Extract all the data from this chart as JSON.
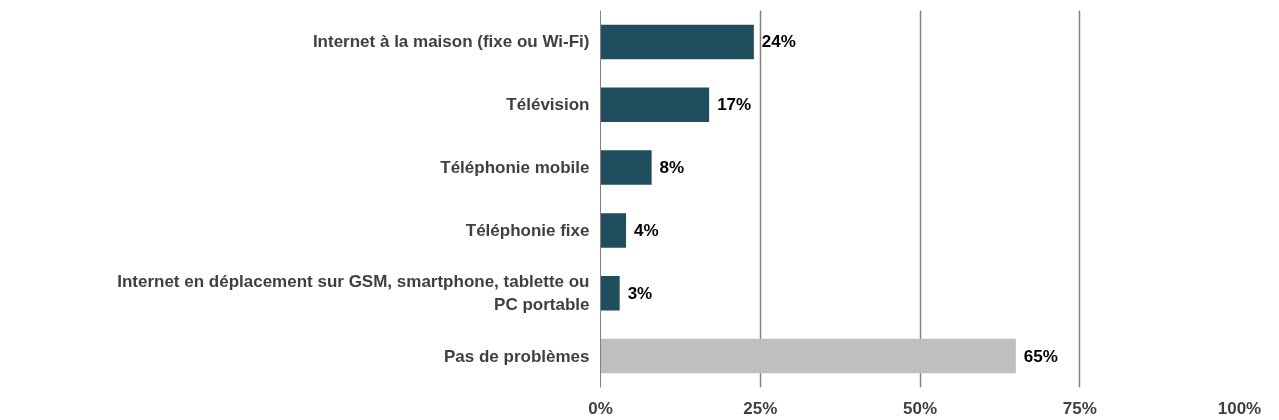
{
  "chart_data": {
    "type": "bar",
    "orientation": "horizontal",
    "categories": [
      "Internet à la maison (fixe ou Wi-Fi)",
      "Télévision",
      "Téléphonie mobile",
      "Téléphonie fixe",
      "Internet en déplacement sur GSM, smartphone, tablette ou PC portable",
      "Pas de problèmes"
    ],
    "values": [
      24,
      17,
      8,
      4,
      3,
      65
    ],
    "colors": [
      "#1f4f5e",
      "#1f4f5e",
      "#1f4f5e",
      "#1f4f5e",
      "#1f4f5e",
      "#bfbfbf"
    ],
    "value_labels": [
      "24%",
      "17%",
      "8%",
      "4%",
      "3%",
      "65%"
    ],
    "xlim": [
      0,
      100
    ],
    "xticks": [
      {
        "value": 0,
        "label": "0%"
      },
      {
        "value": 25,
        "label": "25%"
      },
      {
        "value": 50,
        "label": "50%"
      },
      {
        "value": 75,
        "label": "75%"
      },
      {
        "value": 100,
        "label": "100%"
      }
    ],
    "grid": "x"
  }
}
